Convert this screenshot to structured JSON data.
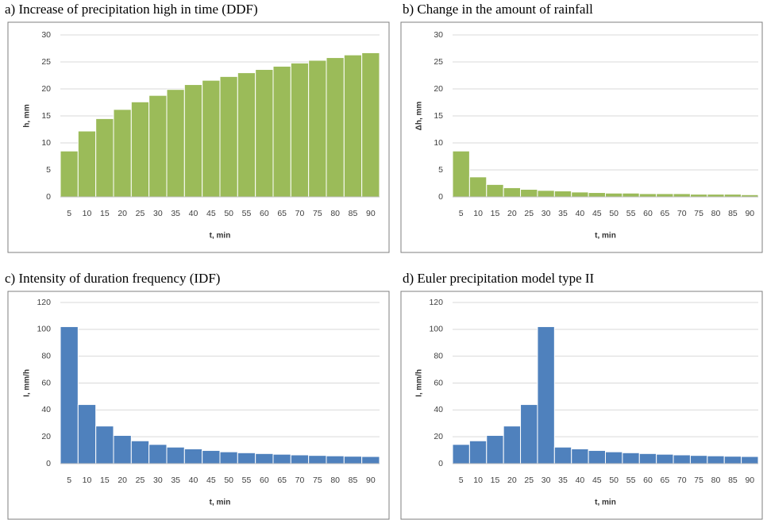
{
  "chart_data": [
    {
      "type": "bar",
      "title": "a)  Increase of precipitation high in time (DDF)",
      "xlabel": "t, min",
      "ylabel": "h, mm",
      "categories": [
        "5",
        "10",
        "15",
        "20",
        "25",
        "30",
        "35",
        "40",
        "45",
        "50",
        "55",
        "60",
        "65",
        "70",
        "75",
        "80",
        "85",
        "90"
      ],
      "values": [
        8.5,
        12.2,
        14.5,
        16.2,
        17.6,
        18.8,
        19.9,
        20.8,
        21.6,
        22.3,
        23.0,
        23.6,
        24.2,
        24.8,
        25.3,
        25.8,
        26.3,
        26.7
      ],
      "color": "#9bbb59",
      "ylim": [
        0,
        30
      ],
      "yticks": [
        0,
        5,
        10,
        15,
        20,
        25,
        30
      ],
      "grid": true
    },
    {
      "type": "bar",
      "title": "b) Change in the amount of rainfall",
      "xlabel": "t, min",
      "ylabel": "Δh, mm",
      "categories": [
        "5",
        "10",
        "15",
        "20",
        "25",
        "30",
        "35",
        "40",
        "45",
        "50",
        "55",
        "60",
        "65",
        "70",
        "75",
        "80",
        "85",
        "90"
      ],
      "values": [
        8.5,
        3.7,
        2.3,
        1.7,
        1.4,
        1.2,
        1.1,
        0.9,
        0.8,
        0.7,
        0.7,
        0.6,
        0.6,
        0.6,
        0.5,
        0.5,
        0.5,
        0.4
      ],
      "color": "#9bbb59",
      "ylim": [
        0,
        30
      ],
      "yticks": [
        0,
        5,
        10,
        15,
        20,
        25,
        30
      ],
      "grid": true
    },
    {
      "type": "bar",
      "title": "c) Intensity of duration frequency (IDF)",
      "xlabel": "t, min",
      "ylabel": "I, mm/h",
      "categories": [
        "5",
        "10",
        "15",
        "20",
        "25",
        "30",
        "35",
        "40",
        "45",
        "50",
        "55",
        "60",
        "65",
        "70",
        "75",
        "80",
        "85",
        "90"
      ],
      "values": [
        102,
        44,
        28,
        21,
        17,
        14.3,
        12.3,
        11,
        9.8,
        8.8,
        8.1,
        7.5,
        7,
        6.5,
        6.1,
        5.8,
        5.5,
        5.3
      ],
      "color": "#4f81bd",
      "ylim": [
        0,
        120
      ],
      "yticks": [
        0,
        20,
        40,
        60,
        80,
        100,
        120
      ],
      "grid": true
    },
    {
      "type": "bar",
      "title": "d) Euler precipitation model type II",
      "xlabel": "t, min",
      "ylabel": "I, mm/h",
      "categories": [
        "5",
        "10",
        "15",
        "20",
        "25",
        "30",
        "35",
        "40",
        "45",
        "50",
        "55",
        "60",
        "65",
        "70",
        "75",
        "80",
        "85",
        "90"
      ],
      "values": [
        14.3,
        17,
        21,
        28,
        44,
        102,
        12.3,
        11,
        9.8,
        8.8,
        8.1,
        7.5,
        7,
        6.5,
        6.1,
        5.8,
        5.5,
        5.3
      ],
      "color": "#4f81bd",
      "ylim": [
        0,
        120
      ],
      "yticks": [
        0,
        20,
        40,
        60,
        80,
        100,
        120
      ],
      "grid": true
    }
  ]
}
